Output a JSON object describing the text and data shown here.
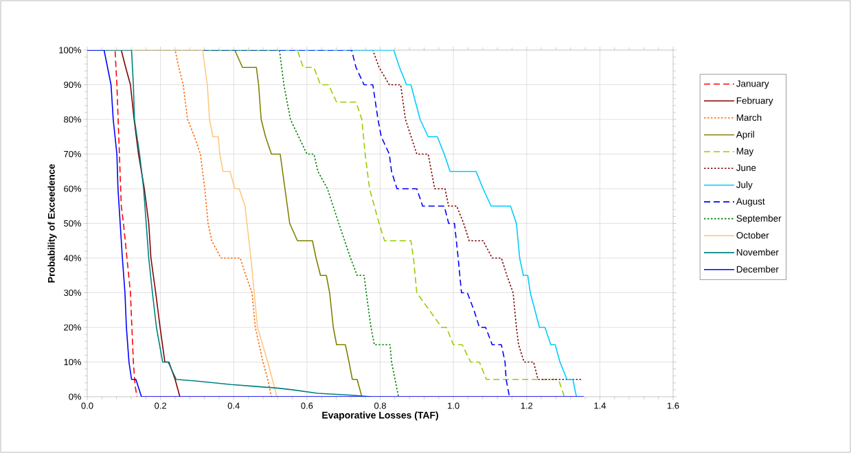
{
  "chart_data": {
    "type": "line",
    "xlabel": "Evaporative Losses (TAF)",
    "ylabel": "Probability of Exceedence",
    "xlim": [
      0,
      1.6
    ],
    "ylim": [
      0,
      100
    ],
    "xticks": [
      {
        "value": 0,
        "label": "0.0"
      },
      0.2,
      0.4,
      0.6,
      0.8,
      {
        "value": 1,
        "label": "1.0"
      },
      1.2,
      1.4,
      1.6
    ],
    "yticks": [
      {
        "value": 0,
        "label": "0%"
      },
      {
        "value": 10,
        "label": "10%"
      },
      {
        "value": 20,
        "label": "20%"
      },
      {
        "value": 30,
        "label": "30%"
      },
      {
        "value": 40,
        "label": "40%"
      },
      {
        "value": 50,
        "label": "50%"
      },
      {
        "value": 60,
        "label": "60%"
      },
      {
        "value": 70,
        "label": "70%"
      },
      {
        "value": 80,
        "label": "80%"
      },
      {
        "value": 90,
        "label": "90%"
      },
      {
        "value": 100,
        "label": "100%"
      }
    ],
    "grid": true,
    "legend": "right",
    "series": [
      {
        "name": "January",
        "color": "#ff0000",
        "line_style": "dashed",
        "x": [
          0,
          0.076,
          0.081,
          0.093,
          0.099,
          0.118,
          0.126,
          0.131,
          0.136
        ],
        "values": [
          100,
          100,
          90,
          55,
          50,
          30,
          10,
          3,
          0
        ]
      },
      {
        "name": "February",
        "color": "#800000",
        "line_style": "solid",
        "x": [
          0,
          0.093,
          0.105,
          0.118,
          0.128,
          0.14,
          0.156,
          0.168,
          0.174,
          0.187,
          0.199,
          0.212,
          0.223,
          0.24,
          0.253
        ],
        "values": [
          100,
          100,
          95,
          90,
          80,
          70,
          60,
          50,
          40,
          30,
          20,
          10,
          10,
          5,
          0
        ]
      },
      {
        "name": "March",
        "color": "#ff6600",
        "line_style": "dotted",
        "x": [
          0,
          0.24,
          0.25,
          0.262,
          0.274,
          0.293,
          0.309,
          0.321,
          0.33,
          0.34,
          0.365,
          0.418,
          0.433,
          0.45,
          0.459,
          0.48,
          0.493,
          0.503
        ],
        "values": [
          100,
          100,
          95,
          90,
          80,
          75,
          70,
          60,
          50,
          45,
          40,
          40,
          35,
          30,
          20,
          10,
          5,
          0
        ]
      },
      {
        "name": "April",
        "color": "#808000",
        "line_style": "solid",
        "x": [
          0,
          0.403,
          0.424,
          0.462,
          0.468,
          0.475,
          0.487,
          0.503,
          0.527,
          0.54,
          0.553,
          0.574,
          0.615,
          0.625,
          0.637,
          0.653,
          0.662,
          0.672,
          0.681,
          0.705,
          0.715,
          0.724,
          0.737,
          0.75
        ],
        "values": [
          100,
          100,
          95,
          95,
          90,
          80,
          75,
          70,
          70,
          60,
          50,
          45,
          45,
          40,
          35,
          35,
          30,
          20,
          15,
          15,
          10,
          5,
          5,
          0
        ]
      },
      {
        "name": "May",
        "color": "#99cc00",
        "line_style": "dashed",
        "x": [
          0,
          0.574,
          0.59,
          0.619,
          0.637,
          0.659,
          0.681,
          0.734,
          0.75,
          0.759,
          0.771,
          0.797,
          0.812,
          0.884,
          0.891,
          0.9,
          0.934,
          0.968,
          0.981,
          1.0,
          1.024,
          1.047,
          1.071,
          1.09,
          1.287,
          1.303
        ],
        "values": [
          100,
          100,
          95,
          95,
          90,
          90,
          85,
          85,
          80,
          70,
          60,
          50,
          45,
          45,
          40,
          30,
          25,
          20,
          20,
          15,
          15,
          10,
          10,
          5,
          5,
          0
        ]
      },
      {
        "name": "June",
        "color": "#800000",
        "line_style": "dotted",
        "x": [
          0,
          0.78,
          0.797,
          0.825,
          0.856,
          0.869,
          0.9,
          0.931,
          0.94,
          0.949,
          0.977,
          0.987,
          1.009,
          1.028,
          1.043,
          1.081,
          1.106,
          1.131,
          1.146,
          1.163,
          1.172,
          1.178,
          1.193,
          1.219,
          1.231,
          1.35
        ],
        "values": [
          100,
          100,
          95,
          90,
          90,
          80,
          70,
          70,
          65,
          60,
          60,
          55,
          55,
          50,
          45,
          45,
          40,
          40,
          35,
          30,
          20,
          15,
          10,
          10,
          5,
          5
        ]
      },
      {
        "name": "July",
        "color": "#00ccff",
        "line_style": "solid",
        "x": [
          0,
          0.837,
          0.853,
          0.872,
          0.884,
          0.909,
          0.931,
          0.956,
          0.975,
          0.991,
          1.062,
          1.081,
          1.103,
          1.156,
          1.172,
          1.181,
          1.191,
          1.203,
          1.21,
          1.235,
          1.25,
          1.266,
          1.278,
          1.291,
          1.31,
          1.326,
          1.336
        ],
        "values": [
          100,
          100,
          95,
          90,
          90,
          80,
          75,
          75,
          70,
          65,
          65,
          60,
          55,
          55,
          50,
          40,
          35,
          35,
          30,
          20,
          20,
          15,
          15,
          10,
          5,
          5,
          0
        ]
      },
      {
        "name": "August",
        "color": "#0000ff",
        "line_style": "dashed",
        "x": [
          0,
          0.722,
          0.734,
          0.756,
          0.78,
          0.794,
          0.803,
          0.825,
          0.831,
          0.846,
          0.9,
          0.916,
          0.975,
          0.987,
          1.003,
          1.013,
          1.022,
          1.038,
          1.056,
          1.071,
          1.088,
          1.106,
          1.131,
          1.141,
          1.144,
          1.153
        ],
        "values": [
          100,
          100,
          95,
          90,
          90,
          80,
          75,
          70,
          65,
          60,
          60,
          55,
          55,
          50,
          50,
          40,
          30,
          30,
          25,
          20,
          20,
          15,
          15,
          10,
          5,
          0
        ]
      },
      {
        "name": "September",
        "color": "#008000",
        "line_style": "dotted",
        "x": [
          0,
          0.525,
          0.537,
          0.555,
          0.6,
          0.619,
          0.63,
          0.656,
          0.687,
          0.719,
          0.737,
          0.756,
          0.762,
          0.775,
          0.784,
          0.827,
          0.831,
          0.85
        ],
        "values": [
          100,
          100,
          90,
          80,
          70,
          70,
          65,
          60,
          50,
          40,
          35,
          35,
          30,
          20,
          15,
          15,
          10,
          0
        ]
      },
      {
        "name": "October",
        "color": "#ffc880",
        "line_style": "solid",
        "x": [
          0,
          0.315,
          0.328,
          0.334,
          0.343,
          0.358,
          0.362,
          0.371,
          0.39,
          0.403,
          0.415,
          0.431,
          0.447,
          0.456,
          0.465,
          0.493,
          0.518
        ],
        "values": [
          100,
          100,
          90,
          80,
          75,
          75,
          70,
          65,
          65,
          60,
          60,
          55,
          40,
          30,
          20,
          10,
          0
        ]
      },
      {
        "name": "November",
        "color": "#008080",
        "line_style": "solid",
        "x": [
          0,
          0.121,
          0.126,
          0.129,
          0.143,
          0.154,
          0.161,
          0.168,
          0.178,
          0.189,
          0.206,
          0.221,
          0.243,
          0.3,
          0.393,
          0.456,
          0.518,
          0.56,
          0.629,
          0.713,
          0.775
        ],
        "values": [
          100,
          100,
          90,
          80,
          70,
          60,
          50,
          40,
          30,
          20,
          10,
          10,
          5,
          4.5,
          3.5,
          3,
          2.5,
          2,
          1,
          0.5,
          0
        ]
      },
      {
        "name": "December",
        "color": "#0000ff",
        "line_style": "solid",
        "x": [
          0,
          0.046,
          0.065,
          0.071,
          0.081,
          0.084,
          0.09,
          0.096,
          0.103,
          0.107,
          0.114,
          0.121,
          0.133,
          0.148,
          1.356
        ],
        "values": [
          100,
          100,
          90,
          80,
          70,
          60,
          50,
          40,
          30,
          20,
          10,
          5,
          5,
          0,
          0
        ]
      }
    ]
  }
}
